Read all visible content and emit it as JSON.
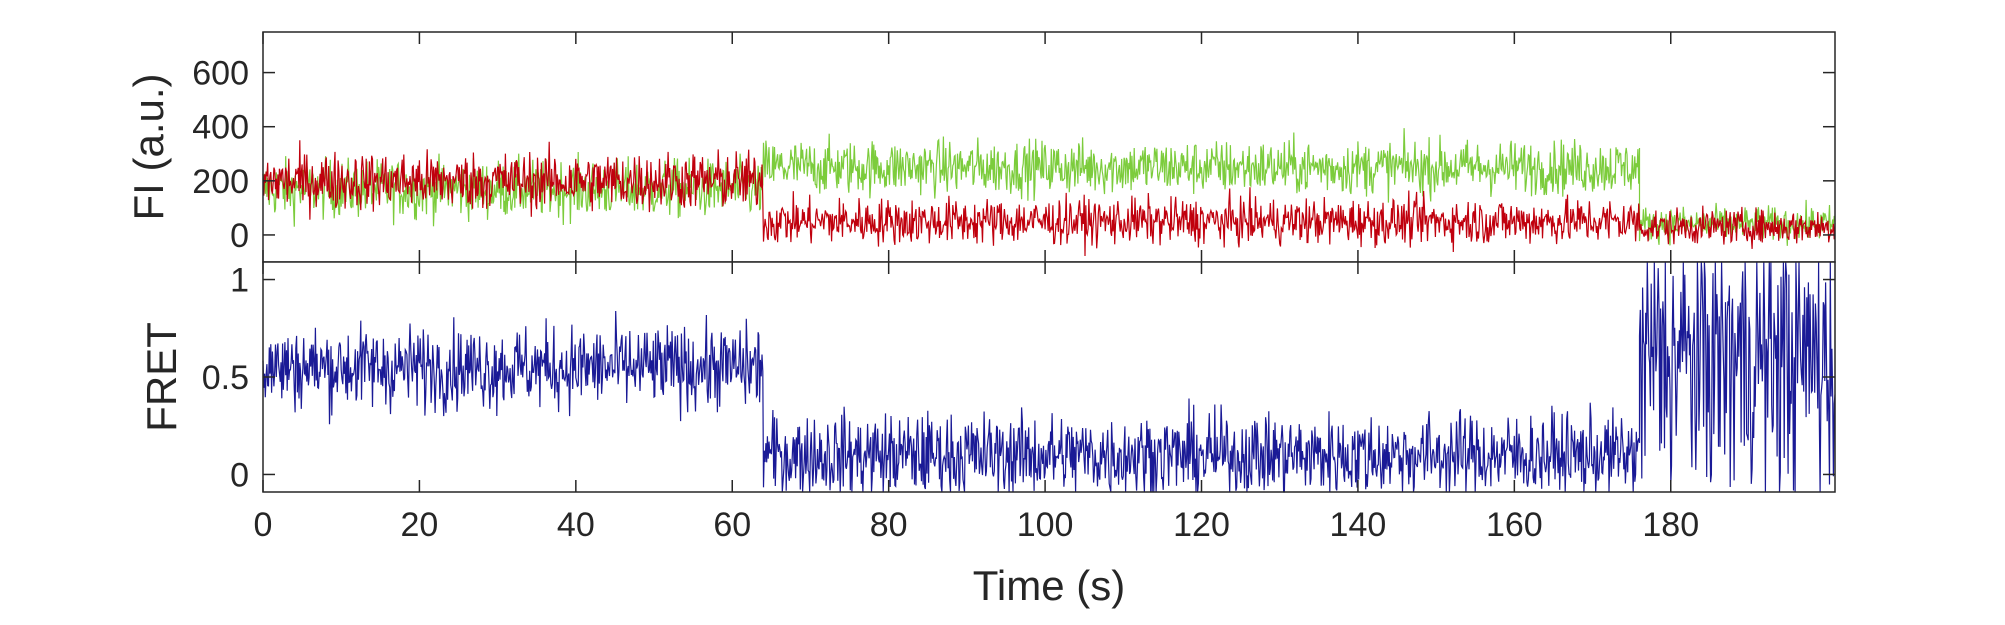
{
  "chart_data": [
    {
      "type": "line",
      "ylabel": "FI (a.u.)",
      "xlabel": "",
      "xlim": [
        0,
        201
      ],
      "ylim": [
        -100,
        750
      ],
      "yticks": [
        0,
        200,
        400,
        600
      ],
      "xticks": [
        0,
        20,
        40,
        60,
        80,
        100,
        120,
        140,
        160,
        180
      ],
      "grid": false,
      "series": [
        {
          "color": "#7ccc3c",
          "segments": [
            {
              "x_start": 0,
              "x_end": 64,
              "mean": 170,
              "noise": 75
            },
            {
              "x_start": 64,
              "x_end": 176,
              "mean": 250,
              "noise": 70
            },
            {
              "x_start": 176,
              "x_end": 201,
              "mean": 40,
              "noise": 45
            }
          ]
        },
        {
          "color": "#c0000d",
          "segments": [
            {
              "x_start": 0,
              "x_end": 64,
              "mean": 200,
              "noise": 75
            },
            {
              "x_start": 64,
              "x_end": 176,
              "mean": 50,
              "noise": 60
            },
            {
              "x_start": 176,
              "x_end": 201,
              "mean": 30,
              "noise": 45
            }
          ]
        }
      ]
    },
    {
      "type": "line",
      "ylabel": "FRET",
      "xlabel": "Time (s)",
      "xlim": [
        0,
        201
      ],
      "ylim": [
        -0.09,
        1.09
      ],
      "yticks": [
        0,
        0.5,
        1
      ],
      "ytick_labels": [
        "0",
        "0.5",
        "1"
      ],
      "xticks": [
        0,
        20,
        40,
        60,
        80,
        100,
        120,
        140,
        160,
        180
      ],
      "xtick_labels": [
        "0",
        "20",
        "40",
        "60",
        "80",
        "100",
        "120",
        "140",
        "160",
        "180"
      ],
      "grid": false,
      "series": [
        {
          "color": "#1a1a96",
          "segments": [
            {
              "x_start": 0,
              "x_end": 64,
              "mean": 0.55,
              "noise": 0.15
            },
            {
              "x_start": 64,
              "x_end": 176,
              "mean": 0.1,
              "noise": 0.15
            },
            {
              "x_start": 176,
              "x_end": 201,
              "mean": 0.6,
              "noise": 0.5
            }
          ]
        }
      ]
    }
  ]
}
